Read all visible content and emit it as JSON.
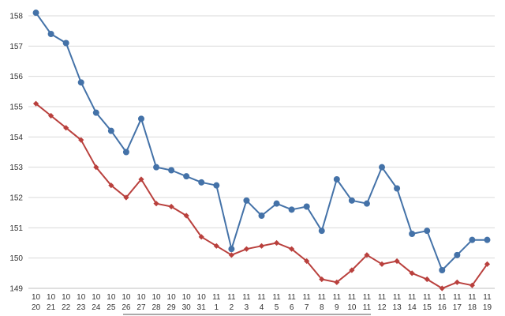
{
  "chart_data": {
    "type": "line",
    "title": "",
    "xlabel": "",
    "ylabel": "",
    "ylim": [
      149,
      158
    ],
    "yticks": [
      "149",
      "150",
      "151",
      "152",
      "153",
      "154",
      "155",
      "156",
      "157",
      "158"
    ],
    "grid": true,
    "legend": "none",
    "categories": [
      {
        "month": "10",
        "day": "20"
      },
      {
        "month": "10",
        "day": "21"
      },
      {
        "month": "10",
        "day": "22"
      },
      {
        "month": "10",
        "day": "23"
      },
      {
        "month": "10",
        "day": "24"
      },
      {
        "month": "10",
        "day": "25"
      },
      {
        "month": "10",
        "day": "26"
      },
      {
        "month": "10",
        "day": "27"
      },
      {
        "month": "10",
        "day": "28"
      },
      {
        "month": "10",
        "day": "29"
      },
      {
        "month": "10",
        "day": "30"
      },
      {
        "month": "10",
        "day": "31"
      },
      {
        "month": "11",
        "day": "1"
      },
      {
        "month": "11",
        "day": "2"
      },
      {
        "month": "11",
        "day": "3"
      },
      {
        "month": "11",
        "day": "4"
      },
      {
        "month": "11",
        "day": "5"
      },
      {
        "month": "11",
        "day": "6"
      },
      {
        "month": "11",
        "day": "7"
      },
      {
        "month": "11",
        "day": "8"
      },
      {
        "month": "11",
        "day": "9"
      },
      {
        "month": "11",
        "day": "10"
      },
      {
        "month": "11",
        "day": "11"
      },
      {
        "month": "11",
        "day": "12"
      },
      {
        "month": "11",
        "day": "13"
      },
      {
        "month": "11",
        "day": "14"
      },
      {
        "month": "11",
        "day": "15"
      },
      {
        "month": "11",
        "day": "16"
      },
      {
        "month": "11",
        "day": "17"
      },
      {
        "month": "11",
        "day": "18"
      },
      {
        "month": "11",
        "day": "19"
      }
    ],
    "series": [
      {
        "color": "#4472a8",
        "marker": "circle",
        "values": [
          158.1,
          157.4,
          157.1,
          155.8,
          154.8,
          154.2,
          153.5,
          154.6,
          153.0,
          152.9,
          152.7,
          152.5,
          152.4,
          150.3,
          151.9,
          151.4,
          151.8,
          151.6,
          151.7,
          150.9,
          152.6,
          151.9,
          151.8,
          153.0,
          152.3,
          150.8,
          150.9,
          149.6,
          150.1,
          150.6,
          150.6
        ]
      },
      {
        "color": "#b9403d",
        "marker": "diamond",
        "values": [
          155.1,
          154.7,
          154.3,
          153.9,
          153.0,
          152.4,
          152.0,
          152.6,
          151.8,
          151.7,
          151.4,
          150.7,
          150.4,
          150.1,
          150.3,
          150.4,
          150.5,
          150.3,
          149.9,
          149.3,
          149.2,
          149.6,
          150.1,
          149.8,
          149.9,
          149.5,
          149.3,
          149.0,
          149.2,
          149.1,
          149.8
        ]
      }
    ]
  }
}
